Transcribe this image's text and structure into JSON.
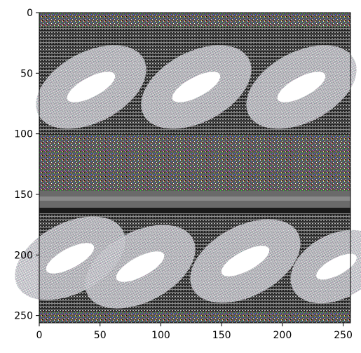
{
  "image": {
    "description_shown": "noisy grayscale/colored raster image with repeating bright elongated capsule shapes in two bands",
    "xlim": [
      0,
      256
    ],
    "ylim": [
      0,
      256
    ],
    "x_ticks": [
      "0",
      "50",
      "100",
      "150",
      "200",
      "250"
    ],
    "y_ticks": [
      "0",
      "50",
      "100",
      "150",
      "200",
      "250"
    ]
  },
  "colors": {
    "background": "#ffffff",
    "axis": "#000000",
    "band_dark": "#1a1a1a",
    "band_gray": "#6a6a6a",
    "capsule_bright": "#ffffff"
  }
}
